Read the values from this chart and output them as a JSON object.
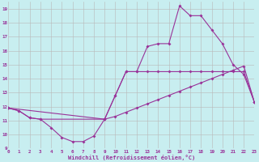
{
  "xlabel": "Windchill (Refroidissement éolien,°C)",
  "bg_color": "#c8eef0",
  "grid_color": "#b8b8b8",
  "line_color": "#993399",
  "xlim": [
    0,
    23
  ],
  "ylim": [
    9,
    19.5
  ],
  "xticks": [
    0,
    1,
    2,
    3,
    4,
    5,
    6,
    7,
    8,
    9,
    10,
    11,
    12,
    13,
    14,
    15,
    16,
    17,
    18,
    19,
    20,
    21,
    22,
    23
  ],
  "yticks": [
    9,
    10,
    11,
    12,
    13,
    14,
    15,
    16,
    17,
    18,
    19
  ],
  "line1_x": [
    0,
    1,
    2,
    3,
    9,
    10,
    11,
    12,
    13,
    14,
    15,
    16,
    17,
    18,
    19,
    20,
    21,
    22,
    23
  ],
  "line1_y": [
    11.9,
    11.7,
    11.2,
    11.1,
    11.1,
    11.3,
    11.6,
    11.9,
    12.2,
    12.5,
    12.8,
    13.1,
    13.4,
    13.7,
    14.0,
    14.3,
    14.6,
    14.9,
    12.3
  ],
  "line2_x": [
    0,
    1,
    2,
    3,
    4,
    5,
    6,
    7,
    8,
    9,
    10,
    11,
    12,
    13,
    14,
    15,
    16,
    17,
    18,
    19,
    20,
    21,
    22,
    23
  ],
  "line2_y": [
    11.9,
    11.7,
    11.2,
    11.1,
    10.5,
    9.8,
    9.5,
    9.5,
    9.9,
    11.1,
    12.8,
    14.5,
    14.5,
    14.5,
    14.5,
    14.5,
    14.5,
    14.5,
    14.5,
    14.5,
    14.5,
    14.5,
    14.5,
    12.3
  ],
  "line3_x": [
    0,
    9,
    10,
    11,
    12,
    13,
    14,
    15,
    16,
    17,
    18,
    19,
    20,
    21,
    22,
    23
  ],
  "line3_y": [
    11.9,
    11.1,
    12.8,
    14.5,
    14.5,
    16.3,
    16.5,
    16.5,
    19.2,
    18.5,
    18.5,
    17.5,
    16.5,
    15.0,
    14.3,
    12.3
  ]
}
